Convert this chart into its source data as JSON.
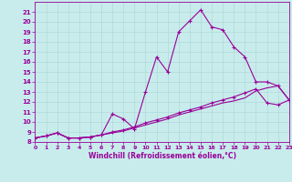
{
  "xlabel": "Windchill (Refroidissement éolien,°C)",
  "x": [
    0,
    1,
    2,
    3,
    4,
    5,
    6,
    7,
    8,
    9,
    10,
    11,
    12,
    13,
    14,
    15,
    16,
    17,
    18,
    19,
    20,
    21,
    22,
    23
  ],
  "line1": [
    8.4,
    8.6,
    8.9,
    8.4,
    8.4,
    8.5,
    8.7,
    10.8,
    10.3,
    9.3,
    13.0,
    16.5,
    15.0,
    19.0,
    20.1,
    21.2,
    19.5,
    19.2,
    17.5,
    16.5,
    14.0,
    14.0,
    13.6,
    12.2
  ],
  "line2": [
    8.4,
    8.6,
    8.9,
    8.4,
    8.4,
    8.5,
    8.7,
    9.0,
    9.2,
    9.5,
    9.9,
    10.2,
    10.5,
    10.9,
    11.2,
    11.5,
    11.9,
    12.2,
    12.5,
    12.9,
    13.3,
    11.9,
    11.7,
    12.2
  ],
  "line3": [
    8.4,
    8.6,
    8.9,
    8.4,
    8.4,
    8.5,
    8.7,
    8.9,
    9.1,
    9.4,
    9.7,
    10.0,
    10.3,
    10.7,
    11.0,
    11.3,
    11.6,
    11.9,
    12.1,
    12.4,
    13.1,
    13.4,
    13.6,
    12.2
  ],
  "bg_color": "#c8ecec",
  "grid_color": "#b0d8d8",
  "line_color": "#990099",
  "xlim": [
    0,
    23
  ],
  "ylim": [
    8,
    22
  ],
  "yticks": [
    8,
    9,
    10,
    11,
    12,
    13,
    14,
    15,
    16,
    17,
    18,
    19,
    20,
    21
  ],
  "xticks": [
    0,
    1,
    2,
    3,
    4,
    5,
    6,
    7,
    8,
    9,
    10,
    11,
    12,
    13,
    14,
    15,
    16,
    17,
    18,
    19,
    20,
    21,
    22,
    23
  ]
}
